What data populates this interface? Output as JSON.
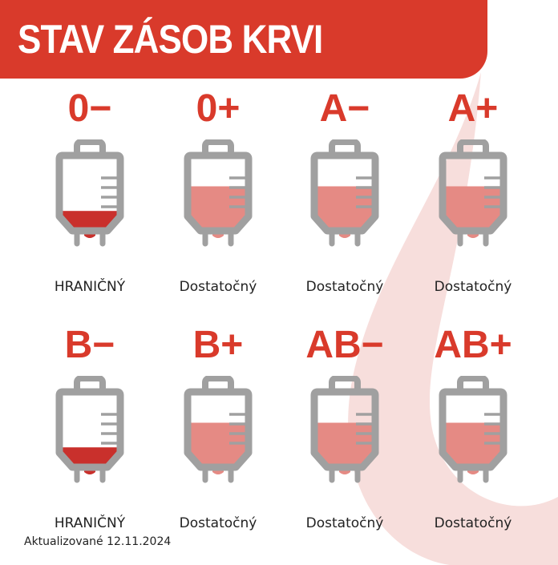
{
  "title": "STAV ZÁSOB KRVI",
  "colors": {
    "brand": "#d93a2b",
    "critical_fill": "#c9302c",
    "sufficient_fill": "#e58a84",
    "bag_outline": "#a0a0a0",
    "drop": "#f7dedc"
  },
  "groups": [
    {
      "type": "0−",
      "status": "HRANIČNÝ",
      "level": 0.3,
      "state": "critical"
    },
    {
      "type": "0+",
      "status": "Dostatočný",
      "level": 0.62,
      "state": "sufficient"
    },
    {
      "type": "A−",
      "status": "Dostatočný",
      "level": 0.62,
      "state": "sufficient"
    },
    {
      "type": "A+",
      "status": "Dostatočný",
      "level": 0.62,
      "state": "sufficient"
    },
    {
      "type": "B−",
      "status": "HRANIČNÝ",
      "level": 0.3,
      "state": "critical"
    },
    {
      "type": "B+",
      "status": "Dostatočný",
      "level": 0.62,
      "state": "sufficient"
    },
    {
      "type": "AB−",
      "status": "Dostatočný",
      "level": 0.62,
      "state": "sufficient"
    },
    {
      "type": "AB+",
      "status": "Dostatočný",
      "level": 0.62,
      "state": "sufficient"
    }
  ],
  "footer": "Aktualizované 12.11.2024"
}
